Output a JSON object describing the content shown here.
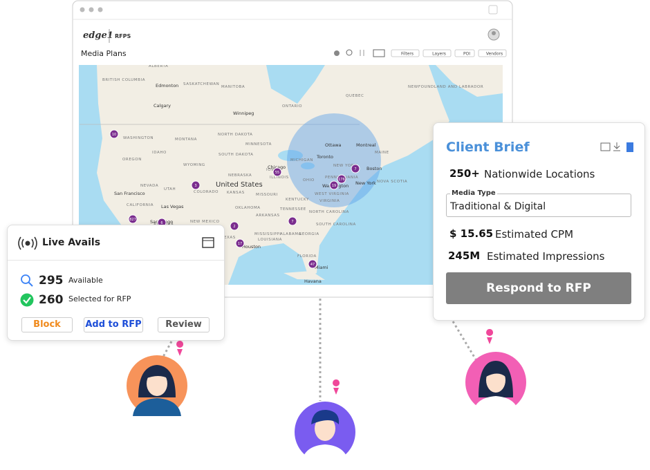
{
  "header": {
    "brand": "edge1",
    "section": "RFPS",
    "page_title": "Media Plans"
  },
  "toolbar": [
    "Filters",
    "Layers",
    "POI",
    "Vendors"
  ],
  "map": {
    "labels": [
      "ALBERTA",
      "SASKATCHEWAN",
      "MANITOBA",
      "BRITISH COLUMBIA",
      "Edmonton",
      "Calgary",
      "Winnipeg",
      "ONTARIO",
      "QUEBEC",
      "NEWFOUNDLAND AND LABRADOR",
      "WASHINGTON",
      "MONTANA",
      "NORTH DAKOTA",
      "MINNESOTA",
      "OREGON",
      "IDAHO",
      "WYOMING",
      "SOUTH DAKOTA",
      "NEBRASKA",
      "IOWA",
      "NEVADA",
      "UTAH",
      "COLORADO",
      "United States",
      "KANSAS",
      "MISSOURI",
      "ILLINOIS",
      "San Francisco",
      "CALIFORNIA",
      "Las Vegas",
      "ARIZONA",
      "NEW MEXICO",
      "OKLAHOMA",
      "TEXAS",
      "San Diego",
      "Ottawa",
      "Montreal",
      "Toronto",
      "MICHIGAN",
      "NEW YORK",
      "Boston",
      "New York",
      "Washington",
      "OHIO",
      "PENNSYLVANIA",
      "WEST VIRGINIA",
      "VIRGINIA",
      "KENTUCKY",
      "TENNESSEE",
      "NORTH CAROLINA",
      "SOUTH CAROLINA",
      "ARKANSAS",
      "MISSISSIPPI",
      "ALABAMA",
      "GEORGIA",
      "LOUISIANA",
      "Houston",
      "FLORIDA",
      "Miami",
      "Havana",
      "Chicago",
      "NOVA SCOTIA",
      "MAINE"
    ],
    "clusters": [
      "10",
      "3",
      "55",
      "176",
      "7",
      "19",
      "827",
      "6",
      "2",
      "7",
      "17",
      "47"
    ]
  },
  "live_avails": {
    "title": "Live Avails",
    "available": {
      "count": "295",
      "label": "Available"
    },
    "selected": {
      "count": "260",
      "label": "Selected for RFP"
    },
    "buttons": [
      "Block",
      "Add to RFP",
      "Review"
    ]
  },
  "client_brief": {
    "title": "Client Brief",
    "locations": {
      "value": "250+",
      "label": "Nationwide Locations"
    },
    "media_type": {
      "label": "Media Type",
      "value": "Traditional & Digital"
    },
    "cpm": {
      "value": "$ 15.65",
      "label": "Estimated CPM"
    },
    "impressions": {
      "value": "245M",
      "label": "Estimated Impressions"
    },
    "button": "Respond to RFP"
  }
}
